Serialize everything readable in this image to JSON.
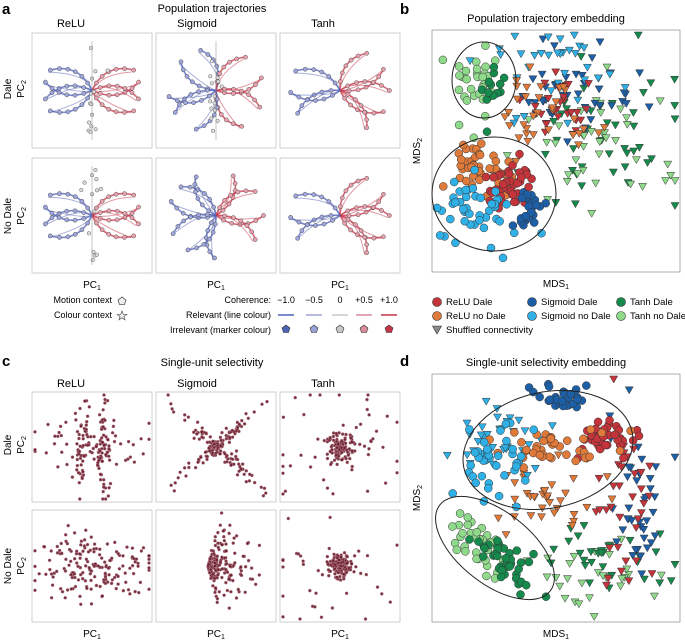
{
  "panel_a": {
    "letter": "a",
    "title": "Population trajectories",
    "col_titles": [
      "ReLU",
      "Sigmoid",
      "Tanh"
    ],
    "row_labels": [
      "Dale",
      "No Dale"
    ],
    "y_axis_label": "PC",
    "y_axis_sub": "2",
    "x_axis_label": "PC",
    "x_axis_sub": "1"
  },
  "legend_a": {
    "motion_context": "Motion context",
    "colour_context": "Colour context",
    "coherence_label": "Coherence:",
    "coherence_values": [
      "−1.0",
      "−0.5",
      "0",
      "+0.5",
      "+1.0"
    ],
    "relevant_label": "Relevant (line colour)",
    "irrelevant_label": "Irrelevant (marker colour)",
    "coherence_colors": [
      "#4f63b5",
      "#9aa3d6",
      "#c8c8c8",
      "#d98c9a",
      "#c7354a"
    ]
  },
  "panel_b": {
    "letter": "b",
    "title": "Population trajectory embedding",
    "x_axis_label": "MDS",
    "x_axis_sub": "1",
    "y_axis_label": "MDS",
    "y_axis_sub": "2"
  },
  "legend_b": {
    "entries": [
      {
        "label": "ReLU Dale",
        "color": "#c4343a",
        "shape": "circle"
      },
      {
        "label": "Sigmoid Dale",
        "color": "#1c5fa6",
        "shape": "circle"
      },
      {
        "label": "Tanh Dale",
        "color": "#168a4c",
        "shape": "circle"
      },
      {
        "label": "ReLU no Dale",
        "color": "#e07a3a",
        "shape": "circle"
      },
      {
        "label": "Sigmoid no Dale",
        "color": "#2fb0e6",
        "shape": "circle"
      },
      {
        "label": "Tanh no Dale",
        "color": "#8fd98b",
        "shape": "circle"
      },
      {
        "label": "Shuffled connectivity",
        "color": "#8a8a8a",
        "shape": "triangle"
      }
    ]
  },
  "panel_c": {
    "letter": "c",
    "title": "Single-unit selectivity",
    "col_titles": [
      "ReLU",
      "Sigmoid",
      "Tanh"
    ],
    "row_labels": [
      "Dale",
      "No Dale"
    ],
    "y_axis_label": "PC",
    "y_axis_sub": "2",
    "x_axis_label": "PC",
    "x_axis_sub": "1"
  },
  "panel_d": {
    "letter": "d",
    "title": "Single-unit selectivity embedding",
    "x_axis_label": "MDS",
    "x_axis_sub": "1",
    "y_axis_label": "MDS",
    "y_axis_sub": "2"
  }
}
